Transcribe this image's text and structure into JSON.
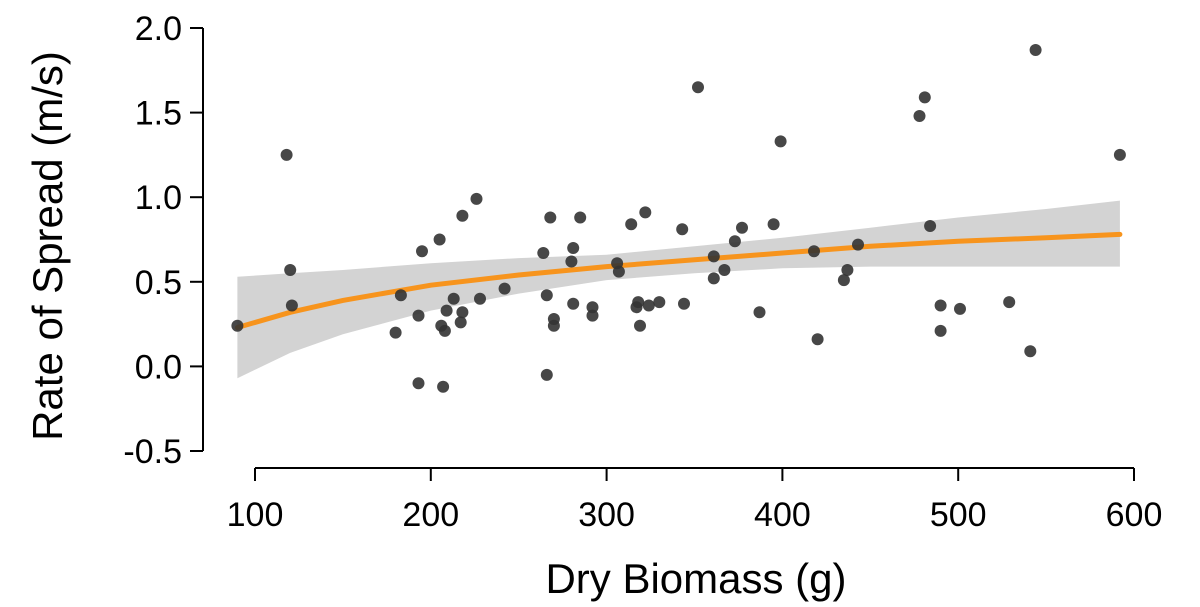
{
  "colors": {
    "points": "#333333",
    "fit_line": "#f7941d",
    "ci_band": "#d3d3d3",
    "axes": "#000000",
    "background": "#ffffff"
  },
  "chart_data": {
    "type": "scatter",
    "title": "",
    "xlabel": "Dry Biomass (g)",
    "ylabel": "Rate of Spread (m/s)",
    "xlim": [
      100,
      600
    ],
    "ylim": [
      -0.5,
      2.0
    ],
    "xticks": [
      100,
      200,
      300,
      400,
      500,
      600
    ],
    "xtick_labels": [
      "100",
      "200",
      "300",
      "400",
      "500",
      "600"
    ],
    "yticks": [
      -0.5,
      0.0,
      0.5,
      1.0,
      1.5,
      2.0
    ],
    "ytick_labels": [
      "-0.5",
      "0.0",
      "0.5",
      "1.0",
      "1.5",
      "2.0"
    ],
    "grid": false,
    "legend": "none",
    "points": {
      "x": [
        90,
        118,
        120,
        121,
        180,
        183,
        193,
        193,
        195,
        205,
        206,
        207,
        208,
        209,
        213,
        217,
        218,
        218,
        226,
        228,
        242,
        264,
        266,
        266,
        268,
        270,
        270,
        280,
        281,
        281,
        285,
        292,
        292,
        306,
        307,
        314,
        317,
        318,
        319,
        322,
        324,
        330,
        343,
        344,
        352,
        361,
        361,
        367,
        373,
        377,
        387,
        395,
        399,
        418,
        420,
        435,
        437,
        443,
        478,
        481,
        484,
        490,
        490,
        501,
        529,
        541,
        544,
        592
      ],
      "y": [
        0.24,
        1.25,
        0.57,
        0.36,
        0.2,
        0.42,
        0.3,
        -0.1,
        0.68,
        0.75,
        0.24,
        -0.12,
        0.21,
        0.33,
        0.4,
        0.26,
        0.89,
        0.32,
        0.99,
        0.4,
        0.46,
        0.67,
        0.42,
        -0.05,
        0.88,
        0.24,
        0.28,
        0.62,
        0.7,
        0.37,
        0.88,
        0.35,
        0.3,
        0.61,
        0.56,
        0.84,
        0.35,
        0.38,
        0.24,
        0.91,
        0.36,
        0.38,
        0.81,
        0.37,
        1.65,
        0.52,
        0.65,
        0.57,
        0.74,
        0.82,
        0.32,
        0.84,
        1.33,
        0.68,
        0.16,
        0.51,
        0.57,
        0.72,
        1.48,
        1.59,
        0.83,
        0.21,
        0.36,
        0.34,
        0.38,
        0.09,
        1.87,
        1.25
      ]
    },
    "fit": {
      "name": "",
      "x": [
        90,
        120,
        150,
        200,
        250,
        300,
        350,
        400,
        450,
        500,
        550,
        592
      ],
      "y": [
        0.23,
        0.32,
        0.39,
        0.48,
        0.54,
        0.59,
        0.63,
        0.67,
        0.71,
        0.74,
        0.76,
        0.78
      ],
      "ci_lower": [
        -0.07,
        0.08,
        0.19,
        0.33,
        0.43,
        0.51,
        0.55,
        0.58,
        0.59,
        0.59,
        0.59,
        0.59
      ],
      "ci_upper": [
        0.53,
        0.55,
        0.57,
        0.61,
        0.64,
        0.66,
        0.71,
        0.76,
        0.82,
        0.88,
        0.93,
        0.98
      ]
    }
  }
}
